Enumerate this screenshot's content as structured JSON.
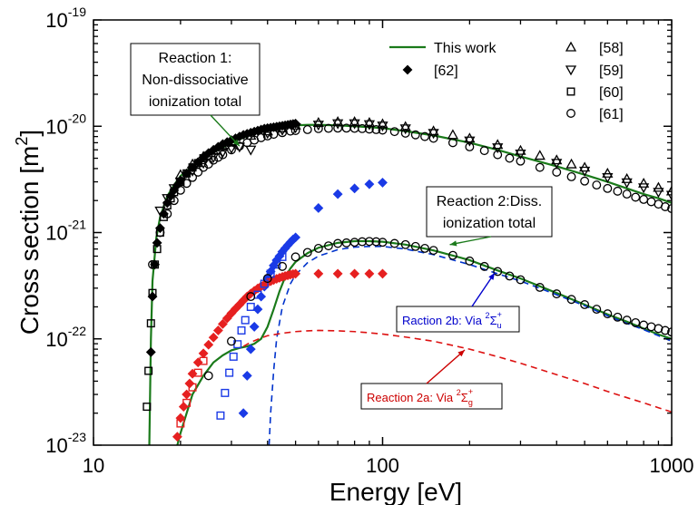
{
  "chart_data": {
    "type": "scatter",
    "title": "",
    "xlabel": "Energy [eV]",
    "ylabel_main": "Cross section [m",
    "ylabel_sup": "2",
    "ylabel_end": "]",
    "x_scale": "log",
    "y_scale": "log",
    "xlim": [
      10,
      1000
    ],
    "ylim": [
      1e-23,
      1e-19
    ],
    "x_ticks": [
      {
        "value": 10,
        "label": "10"
      },
      {
        "value": 100,
        "label": "100"
      },
      {
        "value": 1000,
        "label": "1000"
      }
    ],
    "y_ticks": [
      {
        "value": 1e-23,
        "base": "10",
        "exp": "-23"
      },
      {
        "value": 1e-22,
        "base": "10",
        "exp": "-22"
      },
      {
        "value": 1e-21,
        "base": "10",
        "exp": "-21"
      },
      {
        "value": 1e-20,
        "base": "10",
        "exp": "-20"
      },
      {
        "value": 1e-19,
        "base": "10",
        "exp": "-19"
      }
    ],
    "grid": false,
    "legend": {
      "placement": "top",
      "entries": [
        {
          "key": "this_work",
          "label": "This work",
          "marker": "line",
          "color": "#1a7a1a"
        },
        {
          "key": "r62",
          "label": "[62]",
          "marker": "diamond-filled",
          "color": "#000000"
        },
        {
          "key": "r58",
          "label": "[58]",
          "marker": "triangle-up-open",
          "color": "#000000"
        },
        {
          "key": "r59",
          "label": "[59]",
          "marker": "triangle-down-open",
          "color": "#000000"
        },
        {
          "key": "r60",
          "label": "[60]",
          "marker": "square-open",
          "color": "#000000"
        },
        {
          "key": "r61",
          "label": "[61]",
          "marker": "circle-open",
          "color": "#000000"
        }
      ]
    },
    "annotations": [
      {
        "key": "reaction1",
        "lines": [
          "Reaction 1:",
          "Non-dissociative",
          "ionization total"
        ],
        "target": [
          32,
          6.5e-21
        ]
      },
      {
        "key": "reaction2",
        "lines": [
          "Reaction 2:Diss.",
          "ionization total"
        ],
        "target": [
          150,
          8e-22
        ]
      },
      {
        "key": "reaction2b",
        "prefix": "Raction 2b: Via ",
        "sup": "2",
        "sym": "Σ",
        "sub": "u",
        "supr": "+",
        "color": "#0000cc",
        "target": [
          125,
          6e-22
        ]
      },
      {
        "key": "reaction2a",
        "prefix": "Reaction 2a: Via ",
        "sup": "2",
        "sym": "Σ",
        "sub": "g",
        "supr": "+",
        "color": "#cc0000",
        "target": [
          110,
          9e-23
        ]
      }
    ],
    "series": [
      {
        "name": "This work",
        "key": "r1_total",
        "kind": "line",
        "color": "#1a7a1a",
        "x": [
          15.6,
          15.8,
          16,
          16.5,
          17,
          18,
          19,
          20,
          22,
          24,
          26,
          28,
          30,
          33,
          36,
          40,
          45,
          50,
          55,
          60,
          70,
          80,
          90,
          100,
          120,
          150,
          200,
          250,
          300,
          400,
          500,
          600,
          700,
          800,
          900,
          1000
        ],
        "y": [
          1e-23,
          1e-22,
          3.5e-22,
          9e-22,
          1.4e-21,
          2.2e-21,
          2.8e-21,
          3.4e-21,
          4.2e-21,
          5e-21,
          5.7e-21,
          6.3e-21,
          7e-21,
          7.8e-21,
          8.5e-21,
          9.2e-21,
          9.8e-21,
          1.02e-20,
          1.03e-20,
          1.03e-20,
          1.02e-20,
          1e-20,
          9.8e-21,
          9.6e-21,
          9e-21,
          8.2e-21,
          7e-21,
          6e-21,
          5.2e-21,
          4.2e-21,
          3.5e-21,
          3e-21,
          2.6e-21,
          2.3e-21,
          2.1e-21,
          1.9e-21
        ]
      },
      {
        "name": "",
        "key": "r2_total",
        "kind": "line",
        "color": "#1a7a1a",
        "x": [
          19.5,
          20,
          21,
          22,
          24,
          26,
          28,
          30,
          32,
          34,
          36,
          38,
          40,
          42,
          44,
          46,
          48,
          50,
          55,
          60,
          70,
          80,
          90,
          100,
          120,
          150,
          200,
          250,
          300,
          400,
          500,
          600,
          700,
          800,
          900,
          1000
        ],
        "y": [
          1e-23,
          1.3e-23,
          2e-23,
          3e-23,
          4.5e-23,
          6e-23,
          7e-23,
          7.8e-23,
          8.2e-23,
          8.5e-23,
          9e-23,
          1e-22,
          1.3e-22,
          1.9e-22,
          2.8e-22,
          3.8e-22,
          4.6e-22,
          5.3e-22,
          6.4e-22,
          7.2e-22,
          8e-22,
          8.3e-22,
          8.3e-22,
          8.2e-22,
          7.7e-22,
          6.8e-22,
          5.5e-22,
          4.4e-22,
          3.7e-22,
          2.7e-22,
          2.1e-22,
          1.7e-22,
          1.45e-22,
          1.25e-22,
          1.1e-22,
          1e-22
        ]
      },
      {
        "name": "",
        "key": "r2b",
        "kind": "dashed",
        "color": "#0033cc",
        "x": [
          40.5,
          41,
          42,
          43,
          45,
          48,
          50,
          55,
          60,
          70,
          80,
          90,
          100,
          120,
          150,
          200,
          250,
          300,
          400,
          500,
          600,
          700,
          800,
          900,
          1000
        ],
        "y": [
          1e-23,
          2e-23,
          5e-23,
          1e-22,
          2e-22,
          3.3e-22,
          4e-22,
          5.2e-22,
          6e-22,
          6.9e-22,
          7.3e-22,
          7.4e-22,
          7.4e-22,
          7e-22,
          6.2e-22,
          5e-22,
          4.1e-22,
          3.5e-22,
          2.6e-22,
          2.05e-22,
          1.65e-22,
          1.4e-22,
          1.22e-22,
          1.07e-22,
          9.5e-23
        ]
      },
      {
        "name": "",
        "key": "r2a",
        "kind": "dashed",
        "color": "#dd1111",
        "x": [
          33,
          35,
          38,
          40,
          45,
          50,
          55,
          60,
          70,
          80,
          90,
          100,
          120,
          150,
          200,
          250,
          300,
          400,
          500,
          600,
          700,
          800,
          900,
          1000
        ],
        "y": [
          8.5e-23,
          9.3e-23,
          1.02e-22,
          1.07e-22,
          1.13e-22,
          1.17e-22,
          1.19e-22,
          1.2e-22,
          1.19e-22,
          1.17e-22,
          1.14e-22,
          1.11e-22,
          1.04e-22,
          9.5e-23,
          8e-23,
          6.8e-23,
          5.9e-23,
          4.6e-23,
          3.8e-23,
          3.2e-23,
          2.8e-23,
          2.5e-23,
          2.25e-23,
          2.05e-23
        ]
      },
      {
        "name": "[62]",
        "key": "r62",
        "kind": "diamond-filled",
        "color": "#000000",
        "x": [
          15.8,
          16,
          16.3,
          16.6,
          17,
          17.5,
          18,
          18.5,
          19,
          19.5,
          20,
          21,
          22,
          23,
          24,
          25,
          26,
          27,
          28,
          29,
          30,
          31,
          32,
          33,
          34,
          35,
          36,
          37,
          38,
          39,
          40,
          41,
          42,
          43,
          44,
          45,
          46,
          47,
          48,
          49,
          50
        ],
        "y": [
          7.5e-23,
          2.5e-22,
          5e-22,
          8e-22,
          1.1e-21,
          1.5e-21,
          1.9e-21,
          2.2e-21,
          2.5e-21,
          2.8e-21,
          3.1e-21,
          3.6e-21,
          4.1e-21,
          4.6e-21,
          5.1e-21,
          5.6e-21,
          6e-21,
          6.4e-21,
          6.8e-21,
          7.1e-21,
          7.4e-21,
          7.7e-21,
          8e-21,
          8.3e-21,
          8.5e-21,
          8.7e-21,
          8.9e-21,
          9.1e-21,
          9.3e-21,
          9.5e-21,
          9.6e-21,
          9.7e-21,
          9.8e-21,
          9.9e-21,
          1e-20,
          1.01e-20,
          1.02e-20,
          1.03e-20,
          1.04e-20,
          1.05e-20,
          1.06e-20
        ]
      },
      {
        "name": "",
        "key": "r62_blue",
        "kind": "diamond-filled",
        "color": "#1a3ae6",
        "x": [
          33,
          34,
          35,
          36,
          37,
          38,
          39,
          40,
          41,
          42,
          43,
          44,
          45,
          46,
          47,
          48,
          49,
          50,
          60,
          70,
          80,
          90,
          100
        ],
        "y": [
          2e-23,
          4.5e-23,
          8e-23,
          1.3e-22,
          1.9e-22,
          2.5e-22,
          3.1e-22,
          3.7e-22,
          4.3e-22,
          4.9e-22,
          5.5e-22,
          6e-22,
          6.6e-22,
          7.1e-22,
          7.6e-22,
          8.1e-22,
          8.6e-22,
          9e-22,
          1.7e-21,
          2.3e-21,
          2.6e-21,
          2.85e-21,
          2.95e-21
        ]
      },
      {
        "name": "",
        "key": "r62_red",
        "kind": "diamond-filled",
        "color": "#e62020",
        "x": [
          19.5,
          20,
          20.5,
          21,
          21.5,
          22,
          23,
          24,
          25,
          26,
          27,
          28,
          29,
          30,
          31,
          32,
          33,
          34,
          35,
          36,
          37,
          38,
          39,
          40,
          41,
          42,
          43,
          44,
          45,
          46,
          47,
          48,
          49,
          50,
          60,
          70,
          80,
          90,
          100
        ],
        "y": [
          1.2e-23,
          1.8e-23,
          2.3e-23,
          3e-23,
          3.8e-23,
          4.7e-23,
          6e-23,
          7.3e-23,
          8.8e-23,
          1.03e-22,
          1.2e-22,
          1.38e-22,
          1.56e-22,
          1.74e-22,
          1.92e-22,
          2.1e-22,
          2.3e-22,
          2.5e-22,
          2.67e-22,
          2.83e-22,
          2.98e-22,
          3.12e-22,
          3.25e-22,
          3.37e-22,
          3.48e-22,
          3.58e-22,
          3.67e-22,
          3.75e-22,
          3.83e-22,
          3.9e-22,
          3.96e-22,
          4.02e-22,
          4.07e-22,
          4.1e-22,
          4.1e-22,
          4.1e-22,
          4.1e-22,
          4.1e-22,
          4.1e-22
        ]
      },
      {
        "name": "[58]",
        "key": "r58",
        "kind": "triangle-up-open",
        "color": "#000000",
        "x": [
          20,
          22,
          24,
          26,
          28,
          30,
          35,
          40,
          45,
          50,
          60,
          70,
          80,
          90,
          100,
          120,
          150,
          175,
          200,
          250,
          300,
          350,
          400,
          450,
          500,
          600,
          700,
          800,
          900,
          1000
        ],
        "y": [
          3.5e-21,
          4.4e-21,
          5.2e-21,
          5.9e-21,
          6.5e-21,
          7.1e-21,
          8.2e-21,
          9e-21,
          9.6e-21,
          1.02e-20,
          1.08e-20,
          1.1e-20,
          1.1e-20,
          1.08e-20,
          1.05e-20,
          9.9e-21,
          9e-21,
          8.3e-21,
          7.7e-21,
          6.7e-21,
          5.9e-21,
          5.3e-21,
          4.8e-21,
          4.4e-21,
          4.1e-21,
          3.6e-21,
          3.2e-21,
          2.9e-21,
          2.65e-21,
          2.45e-21
        ]
      },
      {
        "name": "[59]",
        "key": "r59",
        "kind": "triangle-down-open",
        "color": "#000000",
        "x": [
          17,
          18,
          19,
          20,
          22,
          24,
          26,
          28,
          30,
          32,
          35,
          40,
          45,
          50,
          60,
          70,
          80,
          90,
          100,
          120,
          150,
          200,
          250,
          300,
          400,
          500,
          600,
          700,
          800,
          900,
          1000
        ],
        "y": [
          1.6e-21,
          2.1e-21,
          2.6e-21,
          3e-21,
          3.8e-21,
          4.5e-21,
          5.1e-21,
          5.7e-21,
          6.2e-21,
          6.4e-21,
          6e-21,
          8.6e-21,
          9.2e-21,
          9.7e-21,
          1.03e-20,
          1.06e-20,
          1.06e-20,
          1.04e-20,
          1.01e-20,
          9.5e-21,
          8.6e-21,
          7.3e-21,
          6.3e-21,
          5.5e-21,
          4.5e-21,
          3.8e-21,
          3.3e-21,
          2.95e-21,
          2.65e-21,
          2.4e-21,
          2.25e-21
        ]
      },
      {
        "name": "[60]",
        "key": "r60",
        "kind": "square-open",
        "color": "#000000",
        "x": [
          15.3,
          15.5,
          15.8,
          16,
          16.3,
          16.6,
          17,
          17.5,
          18,
          18.5,
          19,
          20,
          21,
          22,
          23,
          24,
          25
        ],
        "y": [
          2.3e-23,
          5e-23,
          1.4e-22,
          2.7e-22,
          5e-22,
          7e-22,
          1e-21,
          1.4e-21,
          1.8e-21,
          2.1e-21,
          2.4e-21,
          3e-21,
          3.6e-21,
          4.1e-21,
          4.5e-21,
          5e-21,
          5.3e-21
        ]
      },
      {
        "name": "",
        "key": "r60_red",
        "kind": "square-open",
        "color": "#e62020",
        "x": [
          20,
          21,
          22,
          23,
          24
        ],
        "y": [
          1.6e-23,
          2.5e-23,
          3.5e-23,
          4.8e-23,
          6.2e-23
        ]
      },
      {
        "name": "",
        "key": "r60_blue",
        "kind": "square-open",
        "color": "#1a3ae6",
        "x": [
          27.5,
          28.5,
          29.5,
          30.5,
          31.5,
          32.5,
          33.5,
          35,
          37,
          39,
          41,
          43,
          45
        ],
        "y": [
          1.9e-23,
          3.1e-23,
          4.8e-23,
          6.8e-23,
          8.9e-23,
          1.2e-22,
          1.5e-22,
          2e-22,
          2.6e-22,
          3.3e-22,
          4.1e-22,
          5e-22,
          5.9e-22
        ]
      },
      {
        "name": "[61]",
        "key": "r61",
        "kind": "circle-open",
        "color": "#000000",
        "x": [
          16,
          17,
          18,
          19,
          20,
          21,
          22,
          23,
          24,
          25,
          26,
          27,
          28,
          30,
          32,
          34,
          36,
          38,
          40,
          42,
          45,
          48,
          50,
          55,
          60,
          65,
          70,
          75,
          80,
          85,
          90,
          95,
          100,
          110,
          120,
          130,
          140,
          150,
          175,
          200,
          225,
          250,
          275,
          300,
          350,
          400,
          450,
          500,
          550,
          600,
          650,
          700,
          750,
          800,
          850,
          900,
          950,
          1000
        ],
        "y": [
          5e-22,
          1e-21,
          1.5e-21,
          2e-21,
          2.5e-21,
          2.9e-21,
          3.3e-21,
          3.7e-21,
          4.1e-21,
          4.4e-21,
          4.8e-21,
          5.1e-21,
          5.4e-21,
          6e-21,
          6.5e-21,
          7e-21,
          7.4e-21,
          7.8e-21,
          8.1e-21,
          8.4e-21,
          8.7e-21,
          9e-21,
          9.1e-21,
          9.3e-21,
          9.5e-21,
          9.55e-21,
          9.6e-21,
          9.6e-21,
          9.55e-21,
          9.5e-21,
          9.4e-21,
          9.3e-21,
          9.2e-21,
          8.9e-21,
          8.6e-21,
          8.3e-21,
          8e-21,
          7.7e-21,
          7e-21,
          6.4e-21,
          5.9e-21,
          5.4e-21,
          5e-21,
          4.7e-21,
          4.1e-21,
          3.7e-21,
          3.35e-21,
          3.05e-21,
          2.8e-21,
          2.6e-21,
          2.45e-21,
          2.3e-21,
          2.15e-21,
          2.05e-21,
          1.95e-21,
          1.85e-21,
          1.75e-21,
          1.68e-21
        ]
      },
      {
        "name": "",
        "key": "r61_diss",
        "kind": "circle-open",
        "color": "#000000",
        "x": [
          25,
          30,
          35,
          40,
          45,
          50,
          55,
          60,
          65,
          70,
          75,
          80,
          85,
          90,
          95,
          100,
          110,
          120,
          130,
          140,
          150,
          175,
          200,
          225,
          250,
          275,
          300,
          350,
          400,
          450,
          500,
          550,
          600,
          650,
          700,
          750,
          800,
          850,
          900,
          950,
          1000
        ],
        "y": [
          4.5e-23,
          9.5e-23,
          2.5e-22,
          3.7e-22,
          4.8e-22,
          5.9e-22,
          6.5e-22,
          7.1e-22,
          7.5e-22,
          7.9e-22,
          8e-22,
          8.1e-22,
          8.2e-22,
          8.25e-22,
          8.2e-22,
          8.1e-22,
          7.9e-22,
          7.7e-22,
          7.4e-22,
          7.1e-22,
          6.8e-22,
          6.1e-22,
          5.4e-22,
          4.8e-22,
          4.3e-22,
          3.9e-22,
          3.6e-22,
          3.05e-22,
          2.65e-22,
          2.35e-22,
          2.1e-22,
          1.9e-22,
          1.72e-22,
          1.6e-22,
          1.5e-22,
          1.42e-22,
          1.35e-22,
          1.3e-22,
          1.25e-22,
          1.2e-22,
          1.16e-22
        ]
      }
    ]
  }
}
